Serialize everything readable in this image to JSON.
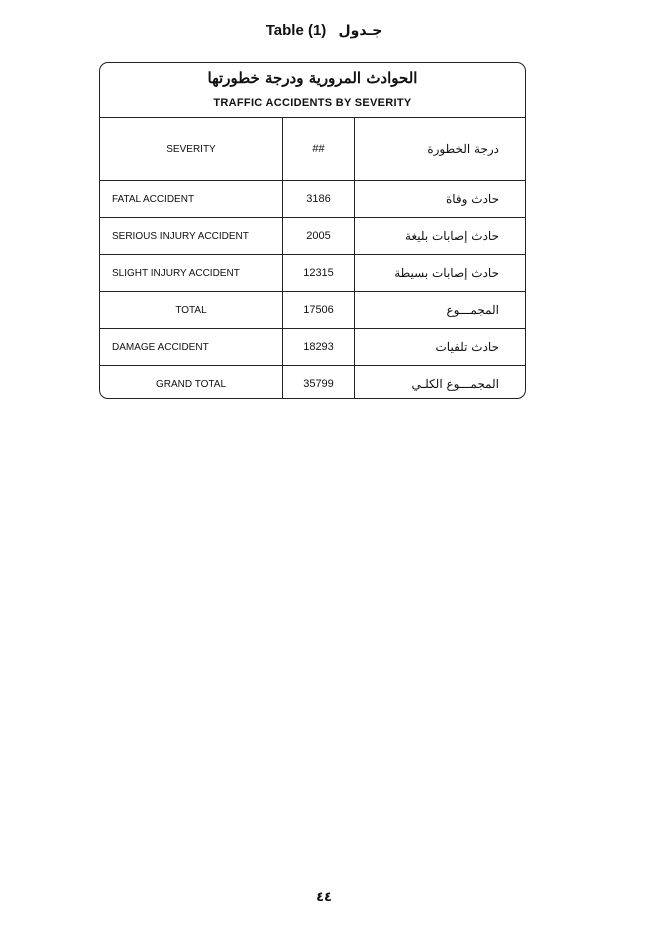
{
  "caption": {
    "en": "Table (1)",
    "ar": "جـدول"
  },
  "table": {
    "title_ar": "الحوادث المرورية ودرجة خطورتها",
    "title_en": "TRAFFIC ACCIDENTS BY SEVERITY",
    "headers": {
      "severity": "SEVERITY",
      "count": "##",
      "severity_ar": "درجة الخطورة"
    },
    "rows": [
      {
        "en": "FATAL ACCIDENT",
        "value": "3186",
        "ar": "حادث وفاة"
      },
      {
        "en": "SERIOUS INJURY ACCIDENT",
        "value": "2005",
        "ar": "حادث إصابات بليغة"
      },
      {
        "en": "SLIGHT INJURY ACCIDENT",
        "value": "12315",
        "ar": "حادث إصابات بسيطة"
      },
      {
        "en": "TOTAL",
        "value": "17506",
        "ar": "المجمـــوع"
      },
      {
        "en": "DAMAGE ACCIDENT",
        "value": "18293",
        "ar": "حادث تلفيات"
      },
      {
        "en": "GRAND TOTAL",
        "value": "35799",
        "ar": "المجمـــوع الكلـي"
      }
    ]
  },
  "page_number": "٤٤"
}
